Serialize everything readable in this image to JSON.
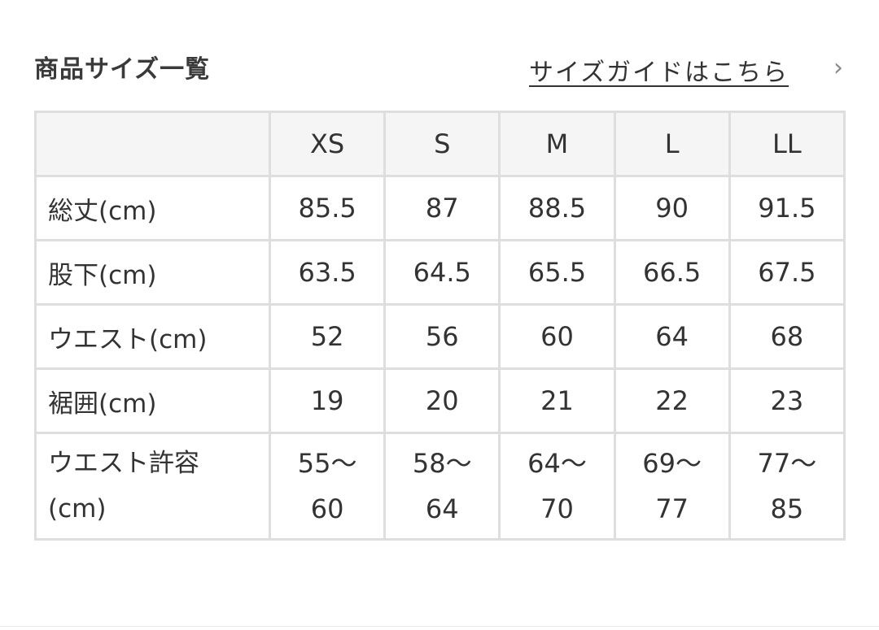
{
  "header": {
    "title": "商品サイズ一覧",
    "guide_link": "サイズガイドはこちら",
    "guide_chevron": "›"
  },
  "table": {
    "columns": [
      "",
      "XS",
      "S",
      "M",
      "L",
      "LL"
    ],
    "rows": [
      {
        "label": "総丈(cm)",
        "values": [
          "85.5",
          "87",
          "88.5",
          "90",
          "91.5"
        ]
      },
      {
        "label": "股下(cm)",
        "values": [
          "63.5",
          "64.5",
          "65.5",
          "66.5",
          "67.5"
        ]
      },
      {
        "label": "ウエスト(cm)",
        "values": [
          "52",
          "56",
          "60",
          "64",
          "68"
        ]
      },
      {
        "label": "裾囲(cm)",
        "values": [
          "19",
          "20",
          "21",
          "22",
          "23"
        ]
      },
      {
        "label": "ウエスト許容(cm)",
        "values": [
          "55〜60",
          "58〜64",
          "64〜70",
          "69〜77",
          "77〜85"
        ]
      }
    ]
  }
}
